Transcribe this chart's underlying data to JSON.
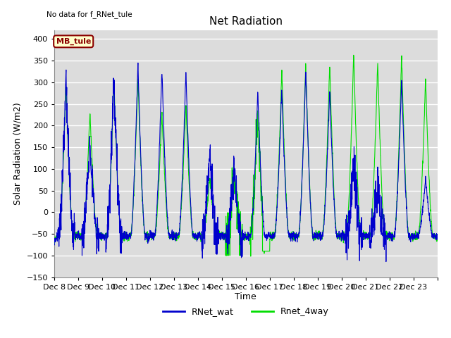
{
  "title": "Net Radiation",
  "ylabel": "Solar Radiation (W/m2)",
  "xlabel": "Time",
  "ylim": [
    -150,
    420
  ],
  "yticks": [
    -150,
    -100,
    -50,
    0,
    50,
    100,
    150,
    200,
    250,
    300,
    350,
    400
  ],
  "bg_color": "#dcdcdc",
  "line1_color": "#0000cc",
  "line2_color": "#00dd00",
  "line1_label": "RNet_wat",
  "line2_label": "Rnet_4way",
  "annotation_text": "No data for f_RNet_tule",
  "box_label": "MB_tule",
  "box_facecolor": "#ffffcc",
  "box_edgecolor": "#8b0000",
  "box_textcolor": "#8b0000",
  "x_tick_labels": [
    "Dec 8",
    "Dec 9",
    "Dec 10",
    "Dec 11",
    "Dec 12",
    "Dec 13",
    "Dec 14",
    "Dec 15",
    "Dec 16",
    "Dec 17",
    "Dec 18",
    "Dec 19",
    "Dec 20",
    "Dec 21",
    "Dec 22",
    "Dec 23"
  ],
  "n_days": 16,
  "pts_per_day": 144,
  "day_peaks_blue": [
    325,
    178,
    325,
    345,
    335,
    330,
    148,
    105,
    280,
    285,
    330,
    283,
    120,
    70,
    310,
    80
  ],
  "day_peaks_green": [
    295,
    235,
    308,
    313,
    234,
    252,
    78,
    95,
    225,
    330,
    343,
    345,
    370,
    350,
    365,
    310
  ],
  "night_base": -55,
  "cloudy_days_blue": [
    6,
    7
  ],
  "late_negative_green": [
    7,
    8
  ],
  "late_negative_day": 15
}
